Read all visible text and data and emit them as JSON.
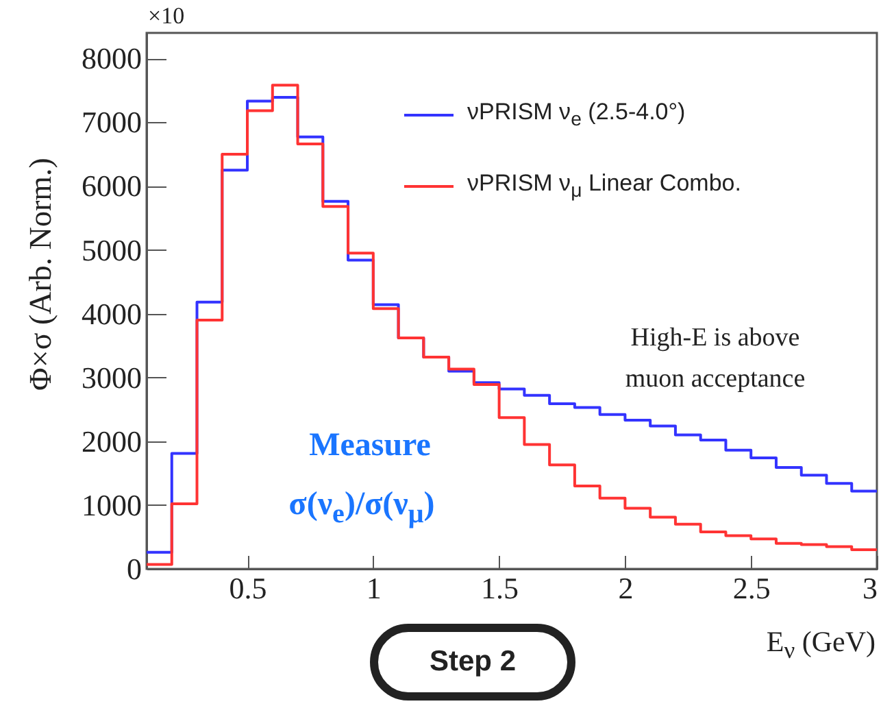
{
  "chart_data": {
    "type": "histogram",
    "xlabel": "E$_{ν}$ (GeV)",
    "ylabel": "Φ×σ (Arb. Norm.)",
    "bins": [
      0.1,
      0.2,
      0.3,
      0.4,
      0.5,
      0.6,
      0.7,
      0.8,
      0.9,
      1.0,
      1.1,
      1.2,
      1.3,
      1.4,
      1.5,
      1.6,
      1.7,
      1.8,
      1.9,
      2.0,
      2.1,
      2.2,
      2.3,
      2.4,
      2.5,
      2.6,
      2.7,
      2.8,
      2.9,
      3.0
    ],
    "series": [
      {
        "name": "νPRISM ν$_{e}$ (2.5-4.0°)",
        "color": "#3333ff",
        "values": [
          260,
          1810,
          4180,
          6250,
          7330,
          7390,
          6770,
          5760,
          4840,
          4140,
          3620,
          3320,
          3100,
          2920,
          2820,
          2720,
          2590,
          2530,
          2420,
          2330,
          2240,
          2100,
          2020,
          1860,
          1740,
          1590,
          1470,
          1340,
          1220
        ]
      },
      {
        "name": "νPRISM ν$_{μ}$ Linear Combo.",
        "color": "#ff3333",
        "values": [
          70,
          1020,
          3900,
          6500,
          7180,
          7580,
          6660,
          5680,
          4950,
          4080,
          3620,
          3320,
          3130,
          2890,
          2370,
          1950,
          1630,
          1300,
          1110,
          950,
          810,
          700,
          580,
          520,
          470,
          400,
          380,
          350,
          300
        ]
      }
    ],
    "xlim": [
      0.1,
      3.0
    ],
    "xticks": [
      0.5,
      1,
      1.5,
      2,
      2.5,
      3
    ],
    "ylim": [
      0,
      8400
    ],
    "yticks": [
      0,
      1000,
      2000,
      3000,
      4000,
      5000,
      6000,
      7000,
      8000
    ],
    "legend": "top right",
    "annotations": [
      "×10",
      "High-E is above muon acceptance",
      "Measure",
      "σ(ν$_{e}$)/σ(ν$_{μ}$)",
      "Step 2"
    ]
  }
}
